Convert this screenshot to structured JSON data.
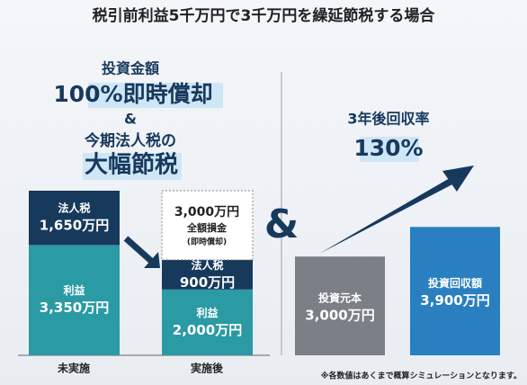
{
  "title": "税引前利益5千万円で3千万円を繰延節税する場合",
  "left_heading": {
    "lines": [
      "投資金額",
      "100%即時償却",
      "&",
      "今期法人税の",
      "大幅節税"
    ]
  },
  "right_heading": {
    "lines": [
      "3年後回収率",
      "130%"
    ]
  },
  "connector": "&",
  "before": {
    "label": "未実施",
    "segments": [
      {
        "name": "法人税",
        "value": 1650,
        "value_label": "1,650万円",
        "color": "#17395c"
      },
      {
        "name": "利益",
        "value": 3350,
        "value_label": "3,350万円",
        "color": "#2a9aa4"
      }
    ]
  },
  "after": {
    "label": "実施後",
    "deduction": {
      "lines": [
        "3,000万円",
        "全額損金",
        "(即時償却)"
      ]
    },
    "segments": [
      {
        "name": "法人税",
        "value": 900,
        "value_label": "900万円",
        "color": "#17395c"
      },
      {
        "name": "利益",
        "value": 2000,
        "value_label": "2,000万円",
        "color": "#2a9aa4"
      }
    ]
  },
  "investment": {
    "bars": [
      {
        "name": "投資元本",
        "value": 3000,
        "value_label": "3,000万円",
        "color": "#7b7f86"
      },
      {
        "name": "投資回収額",
        "value": 3900,
        "value_label": "3,900万円",
        "color": "#2a7fc0"
      }
    ]
  },
  "note": "※各数値はあくまで概算シミュレーションとなります。"
}
